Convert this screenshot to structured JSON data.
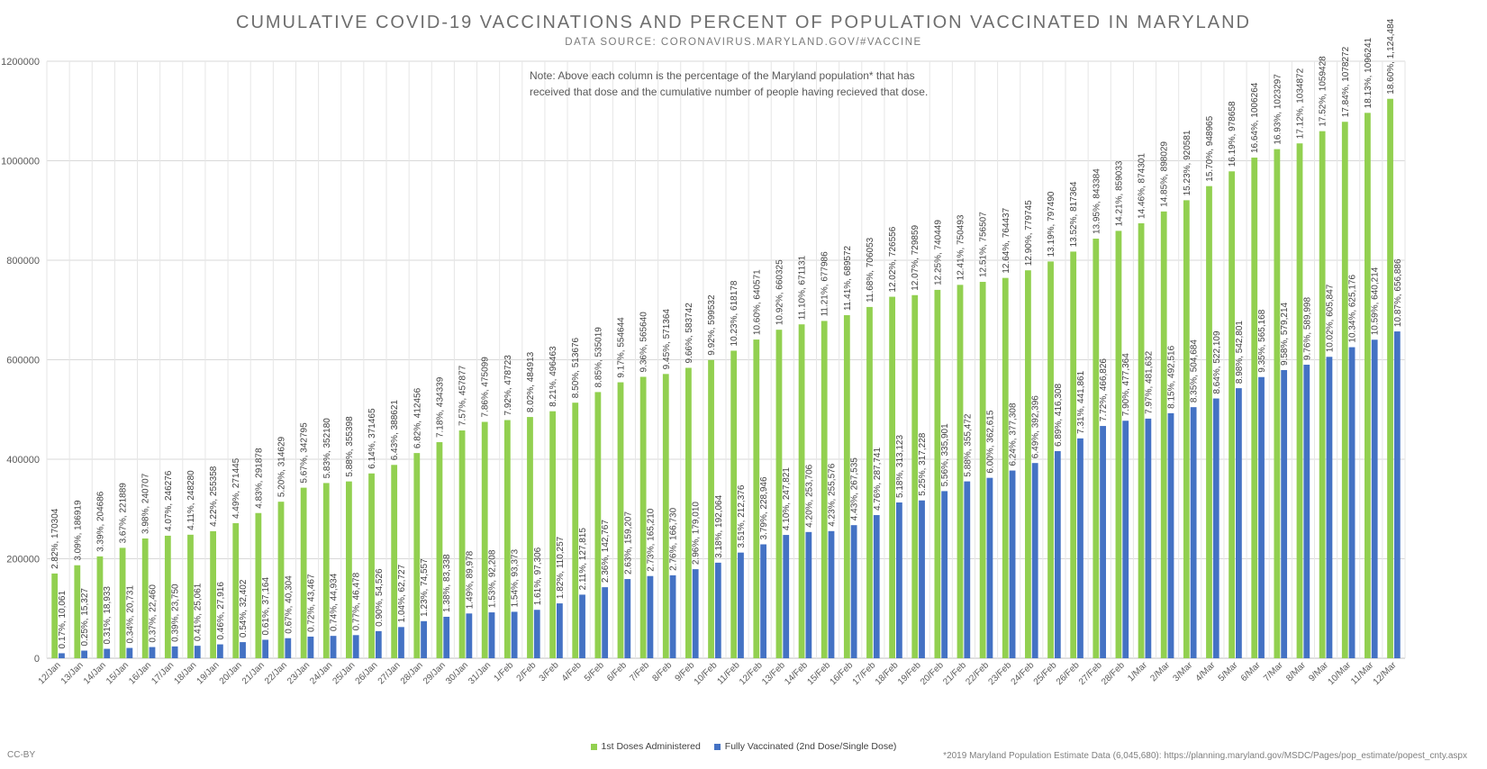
{
  "page": {
    "title": "CUMULATIVE COVID-19 VACCINATIONS AND PERCENT OF POPULATION VACCINATED IN MARYLAND",
    "subtitle": "DATA SOURCE: CORONAVIRUS.MARYLAND.GOV/#VACCINE",
    "note_line1": "Note: Above each column is the percentage of the Maryland population* that has",
    "note_line2": "received that dose and the cumulative number of people having recieved that dose.",
    "license": "CC-BY",
    "footnote": "*2019 Maryland Population Estimate Data (6,045,680): https://planning.maryland.gov/MSDC/Pages/pop_estimate/popest_cnty.aspx"
  },
  "colors": {
    "first_dose": "#92D050",
    "fully_vaccinated": "#4472C4",
    "grid": "#d9d9d9",
    "axis_text": "#595959"
  },
  "chart_data": {
    "type": "bar",
    "ylim": [
      0,
      1200000
    ],
    "yticks": [
      "0",
      "200000",
      "400000",
      "600000",
      "800000",
      "1000000",
      "1200000"
    ],
    "grid": true,
    "legend_position": "bottom",
    "categories": [
      "12/Jan",
      "13/Jan",
      "14/Jan",
      "15/Jan",
      "16/Jan",
      "17/Jan",
      "18/Jan",
      "19/Jan",
      "20/Jan",
      "21/Jan",
      "22/Jan",
      "23/Jan",
      "24/Jan",
      "25/Jan",
      "26/Jan",
      "27/Jan",
      "28/Jan",
      "29/Jan",
      "30/Jan",
      "31/Jan",
      "1/Feb",
      "2/Feb",
      "3/Feb",
      "4/Feb",
      "5/Feb",
      "6/Feb",
      "7/Feb",
      "8/Feb",
      "9/Feb",
      "10/Feb",
      "11/Feb",
      "12/Feb",
      "13/Feb",
      "14/Feb",
      "15/Feb",
      "16/Feb",
      "17/Feb",
      "18/Feb",
      "19/Feb",
      "20/Feb",
      "21/Feb",
      "22/Feb",
      "23/Feb",
      "24/Feb",
      "25/Feb",
      "26/Feb",
      "27/Feb",
      "28/Feb",
      "1/Mar",
      "2/Mar",
      "3/Mar",
      "4/Mar",
      "5/Mar",
      "6/Mar",
      "7/Mar",
      "8/Mar",
      "9/Mar",
      "10/Mar",
      "11/Mar",
      "12/Mar"
    ],
    "series": [
      {
        "name": "1st Doses Administered",
        "values": [
          170304,
          186919,
          204686,
          221889,
          240707,
          246276,
          248280,
          255358,
          271445,
          291878,
          314629,
          342795,
          352180,
          355398,
          371465,
          388621,
          412456,
          434339,
          457877,
          475099,
          478723,
          484913,
          496463,
          513676,
          535019,
          554644,
          565640,
          571364,
          583742,
          599532,
          618178,
          640571,
          660325,
          671131,
          677986,
          689572,
          706053,
          726556,
          729859,
          740449,
          750493,
          756507,
          764437,
          779745,
          797490,
          817364,
          843384,
          859033,
          874301,
          898029,
          920581,
          948965,
          978658,
          1006264,
          1023297,
          1034872,
          1059428,
          1078272,
          1096241,
          1124484
        ],
        "labels": [
          "2.82%, 170304",
          "3.09%, 186919",
          "3.39%, 204686",
          "3.67%, 221889",
          "3.98%, 240707",
          "4.07%, 246276",
          "4.11%, 248280",
          "4.22%, 255358",
          "4.49%, 271445",
          "4.83%, 291878",
          "5.20%, 314629",
          "5.67%, 342795",
          "5.83%, 352180",
          "5.88%, 355398",
          "6.14%, 371465",
          "6.43%, 388621",
          "6.82%, 412456",
          "7.18%, 434339",
          "7.57%, 457877",
          "7.86%, 475099",
          "7.92%, 478723",
          "8.02%, 484913",
          "8.21%, 496463",
          "8.50%, 513676",
          "8.85%, 535019",
          "9.17%, 554644",
          "9.36%, 565640",
          "9.45%, 571364",
          "9.66%, 583742",
          "9.92%, 599532",
          "10.23%, 618178",
          "10.60%, 640571",
          "10.92%, 660325",
          "11.10%, 671131",
          "11.21%, 677986",
          "11.41%, 689572",
          "11.68%, 706053",
          "12.02%, 726556",
          "12.07%, 729859",
          "12.25%, 740449",
          "12.41%, 750493",
          "12.51%, 756507",
          "12.64%, 764437",
          "12.90%, 779745",
          "13.19%, 797490",
          "13.52%, 817364",
          "13.95%, 843384",
          "14.21%, 859033",
          "14.46%, 874301",
          "14.85%, 898029",
          "15.23%, 920581",
          "15.70%, 948965",
          "16.19%, 978658",
          "16.64%, 1006264",
          "16.93%, 1023297",
          "17.12%, 1034872",
          "17.52%, 1059428",
          "17.84%, 1078272",
          "18.13%, 1096241",
          "18.60%, 1,124,484"
        ]
      },
      {
        "name": "Fully Vaccinated (2nd Dose/Single Dose)",
        "values": [
          10061,
          15327,
          18933,
          20731,
          22460,
          23750,
          25061,
          27916,
          32402,
          37164,
          40304,
          43467,
          44934,
          46478,
          54526,
          62727,
          74557,
          83338,
          89978,
          92208,
          93373,
          97306,
          110257,
          127815,
          142767,
          159207,
          165210,
          166730,
          179010,
          192064,
          212376,
          228946,
          247821,
          253706,
          255576,
          267535,
          287741,
          313123,
          317228,
          335901,
          355472,
          362615,
          377308,
          392396,
          416308,
          441861,
          466826,
          477364,
          481632,
          492516,
          504684,
          522109,
          542801,
          565168,
          579214,
          589998,
          605847,
          625176,
          640214,
          656886
        ],
        "labels": [
          "0.17%, 10,061",
          "0.25%, 15,327",
          "0.31%, 18,933",
          "0.34%, 20,731",
          "0.37%, 22,460",
          "0.39%, 23,750",
          "0.41%, 25,061",
          "0.46%, 27,916",
          "0.54%, 32,402",
          "0.61%, 37,164",
          "0.67%, 40,304",
          "0.72%, 43,467",
          "0.74%, 44,934",
          "0.77%, 46,478",
          "0.90%, 54,526",
          "1.04%, 62,727",
          "1.23%, 74,557",
          "1.38%, 83,338",
          "1.49%, 89,978",
          "1.53%, 92,208",
          "1.54%, 93,373",
          "1.61%, 97,306",
          "1.82%, 110,257",
          "2.11%, 127,815",
          "2.36%, 142,767",
          "2.63%, 159,207",
          "2.73%, 165,210",
          "2.76%, 166,730",
          "2.96%, 179,010",
          "3.18%, 192,064",
          "3.51%, 212,376",
          "3.79%, 228,946",
          "4.10%, 247,821",
          "4.20%, 253,706",
          "4.23%, 255,576",
          "4.43%, 267,535",
          "4.76%, 287,741",
          "5.18%, 313,123",
          "5.25%, 317,228",
          "5.56%, 335,901",
          "5.88%, 355,472",
          "6.00%, 362,615",
          "6.24%, 377,308",
          "6.49%, 392,396",
          "6.89%, 416,308",
          "7.31%, 441,861",
          "7.72%, 466,826",
          "7.90%, 477,364",
          "7.97%, 481,632",
          "8.15%, 492,516",
          "8.35%, 504,684",
          "8.64%, 522,109",
          "8.98%, 542,801",
          "9.35%, 565,168",
          "9.58%, 579,214",
          "9.76%, 589,998",
          "10.02%, 605,847",
          "10.34%, 625,176",
          "10.59%, 640,214",
          "10.87%, 656,886"
        ]
      }
    ]
  }
}
